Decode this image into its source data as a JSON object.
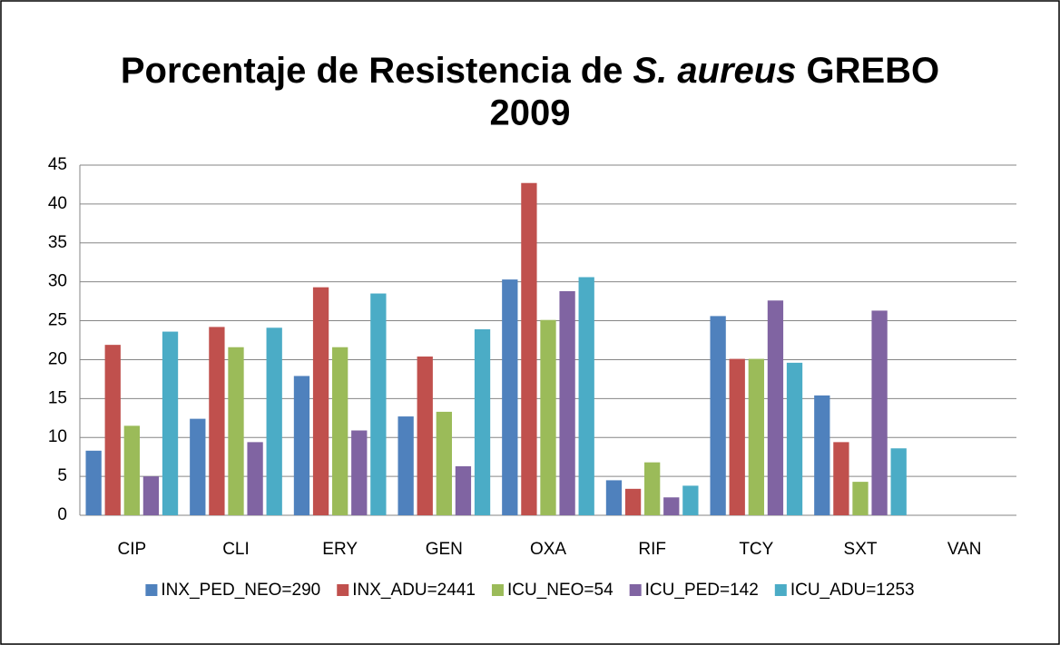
{
  "chart_data": {
    "type": "bar",
    "title": [
      "Porcentaje de Resistencia de",
      "S. aureus",
      "GREBO",
      "2009"
    ],
    "categories": [
      "CIP",
      "CLI",
      "ERY",
      "GEN",
      "OXA",
      "RIF",
      "TCY",
      "SXT",
      "VAN"
    ],
    "series": [
      {
        "name": "INX_PED_NEO=290",
        "color": "#4f81bd",
        "values": [
          8.3,
          12.4,
          17.9,
          12.7,
          30.3,
          4.5,
          25.6,
          15.4,
          0
        ]
      },
      {
        "name": "INX_ADU=2441",
        "color": "#c0504d",
        "values": [
          21.9,
          24.2,
          29.3,
          20.4,
          42.7,
          3.4,
          20.1,
          9.4,
          0
        ]
      },
      {
        "name": "ICU_NEO=54",
        "color": "#9bbb59",
        "values": [
          11.5,
          21.6,
          21.6,
          13.3,
          25.1,
          6.8,
          20.1,
          4.3,
          0
        ]
      },
      {
        "name": "ICU_PED=142",
        "color": "#8064a2",
        "values": [
          5.0,
          9.4,
          10.9,
          6.3,
          28.8,
          2.3,
          27.6,
          26.3,
          0
        ]
      },
      {
        "name": "ICU_ADU=1253",
        "color": "#4bacc6",
        "values": [
          23.6,
          24.1,
          28.5,
          23.9,
          30.6,
          3.8,
          19.6,
          8.6,
          0
        ]
      }
    ],
    "ylim": [
      0,
      45
    ],
    "yticks": [
      0,
      5,
      10,
      15,
      20,
      25,
      30,
      35,
      40,
      45
    ],
    "grid": true,
    "legend": "bottom"
  }
}
